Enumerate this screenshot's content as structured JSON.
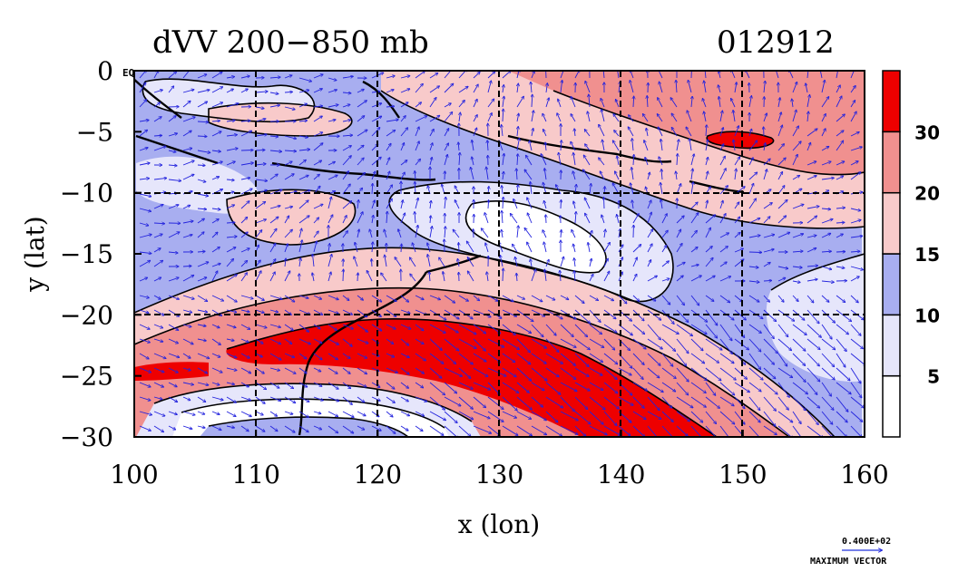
{
  "title": "dVV 200−850 mb",
  "date_label": "012912",
  "xlabel": "x (lon)",
  "ylabel": "y (lat)",
  "corner_label": "EQ",
  "x_axis": {
    "min": 100,
    "max": 160,
    "ticks": [
      "100",
      "110",
      "120",
      "130",
      "140",
      "150",
      "160"
    ],
    "tick_values": [
      100,
      110,
      120,
      130,
      140,
      150,
      160
    ]
  },
  "y_axis": {
    "min": -30,
    "max": 0,
    "ticks": [
      "0",
      "−5",
      "−10",
      "−15",
      "−20",
      "−25",
      "−30"
    ],
    "tick_values": [
      0,
      -5,
      -10,
      -15,
      -20,
      -25,
      -30
    ]
  },
  "colorbar": {
    "levels": [
      0,
      5,
      10,
      15,
      20,
      30,
      40
    ],
    "colors": [
      "#ffffff",
      "#e6e6fb",
      "#a8aef0",
      "#f8caca",
      "#f0908f",
      "#ee0000"
    ],
    "labels": [
      "5",
      "10",
      "15",
      "20",
      "30"
    ]
  },
  "vector_legend": {
    "value": "0.400E+02",
    "caption": "MAXIMUM VECTOR",
    "color": "#2233dd"
  },
  "vector_color": "#2222dd"
}
